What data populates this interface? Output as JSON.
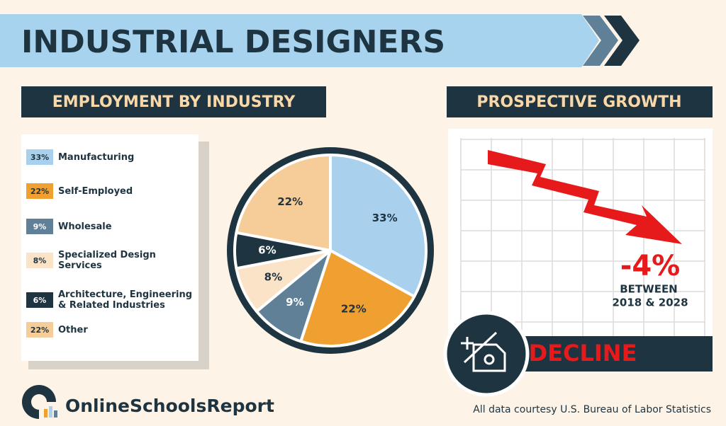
{
  "header": {
    "title": "INDUSTRIAL DESIGNERS"
  },
  "chart_data": {
    "type": "pie",
    "title": "EMPLOYMENT BY INDUSTRY",
    "categories": [
      "Manufacturing",
      "Self-Employed",
      "Wholesale",
      "Specialized Design Services",
      "Architecture, Engineering & Related Industries",
      "Other"
    ],
    "values": [
      33,
      22,
      9,
      8,
      6,
      22
    ],
    "value_labels": [
      "33%",
      "22%",
      "9%",
      "8%",
      "6%",
      "22%"
    ],
    "colors": [
      "#a9d0ec",
      "#f0a030",
      "#5f8097",
      "#fbe3c7",
      "#1e3440",
      "#f6cc98"
    ]
  },
  "growth": {
    "title": "PROSPECTIVE GROWTH",
    "change": "-4%",
    "period": "BETWEEN",
    "years": "2018 & 2028",
    "status": "DECLINE"
  },
  "footer": {
    "brand": "OnlineSchoolsReport",
    "source": "All data courtesy U.S. Bureau of Labor Statistics"
  }
}
